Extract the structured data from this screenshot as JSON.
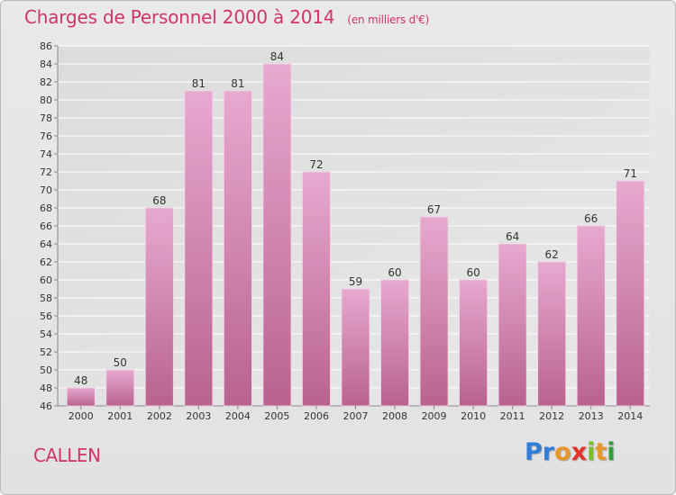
{
  "title": "Charges de Personnel 2000 à 2014",
  "subtitle": "(en milliers d'€)",
  "place": "CALLEN",
  "logo": {
    "letters": [
      "P",
      "r",
      "o",
      "x",
      "i",
      "t",
      "i"
    ],
    "colors": [
      "#2f7fd8",
      "#2f7fd8",
      "#e8962a",
      "#e3322a",
      "#7bbf2a",
      "#e8962a",
      "#2f9f3a"
    ]
  },
  "colors": {
    "bar_top": "#e7a9cf",
    "bar_bottom": "#b8638f",
    "title": "#d0346a",
    "grid": "#ffffff"
  },
  "chart_data": {
    "type": "bar",
    "categories": [
      "2000",
      "2001",
      "2002",
      "2003",
      "2004",
      "2005",
      "2006",
      "2007",
      "2008",
      "2009",
      "2010",
      "2011",
      "2012",
      "2013",
      "2014"
    ],
    "values": [
      48,
      50,
      68,
      81,
      81,
      84,
      72,
      59,
      60,
      67,
      60,
      64,
      62,
      66,
      71
    ],
    "ylim": [
      46,
      86
    ],
    "ytick_step": 2,
    "grid": true
  }
}
